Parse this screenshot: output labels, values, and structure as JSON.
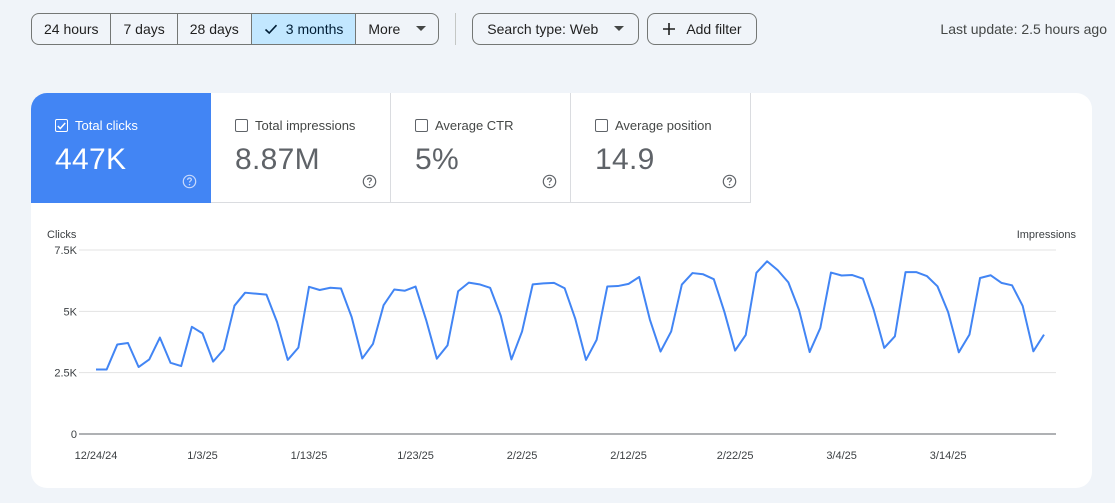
{
  "toolbar": {
    "ranges": [
      {
        "label": "24 hours",
        "selected": false
      },
      {
        "label": "7 days",
        "selected": false
      },
      {
        "label": "28 days",
        "selected": false
      },
      {
        "label": "3 months",
        "selected": true
      },
      {
        "label": "More",
        "selected": false
      }
    ],
    "search_type": "Search type: Web",
    "add_filter": "Add filter",
    "last_update": "Last update: 2.5 hours ago"
  },
  "metrics": [
    {
      "label": "Total clicks",
      "value": "447K",
      "checked": true
    },
    {
      "label": "Total impressions",
      "value": "8.87M",
      "checked": false
    },
    {
      "label": "Average CTR",
      "value": "5%",
      "checked": false
    },
    {
      "label": "Average position",
      "value": "14.9",
      "checked": false
    }
  ],
  "colors": {
    "accent": "#4285f4",
    "selected_chip": "#c2e7ff",
    "page_bg": "#f0f4f9"
  },
  "icons": {
    "selected_range": "check-icon",
    "dropdown": "chevron-down-icon",
    "filter": "plus-icon",
    "metric_help": "help-circle-icon",
    "metric_checkbox": "checkbox-icon"
  },
  "chart_data": {
    "type": "line",
    "ylabel_left": "Clicks",
    "ylabel_right": "Impressions",
    "ylim": [
      0,
      7500
    ],
    "yticks": [
      {
        "value": 0,
        "label": "0"
      },
      {
        "value": 2500,
        "label": "2.5K"
      },
      {
        "value": 5000,
        "label": "5K"
      },
      {
        "value": 7500,
        "label": "7.5K"
      }
    ],
    "xticks": [
      "12/24/24",
      "1/3/25",
      "1/13/25",
      "1/23/25",
      "2/2/25",
      "2/12/25",
      "2/22/25",
      "3/4/25",
      "3/14/25"
    ],
    "grid": true,
    "series": [
      {
        "color": "#4285f4",
        "values": [
          2630,
          2630,
          3650,
          3710,
          2730,
          3040,
          3930,
          2900,
          2770,
          4370,
          4100,
          2950,
          3450,
          5230,
          5760,
          5720,
          5680,
          4560,
          3020,
          3520,
          6000,
          5870,
          5960,
          5930,
          4770,
          3080,
          3670,
          5250,
          5890,
          5840,
          6010,
          4640,
          3070,
          3610,
          5820,
          6170,
          6100,
          5960,
          4820,
          3040,
          4180,
          6100,
          6140,
          6160,
          5940,
          4690,
          3020,
          3840,
          6010,
          6030,
          6120,
          6400,
          4660,
          3360,
          4180,
          6090,
          6560,
          6510,
          6310,
          4970,
          3400,
          4040,
          6570,
          7040,
          6680,
          6180,
          5060,
          3340,
          4320,
          6580,
          6460,
          6480,
          6330,
          5080,
          3510,
          3980,
          6600,
          6600,
          6440,
          6020,
          4970,
          3330,
          4050,
          6360,
          6470,
          6160,
          6060,
          5220,
          3370,
          4050
        ]
      }
    ]
  }
}
